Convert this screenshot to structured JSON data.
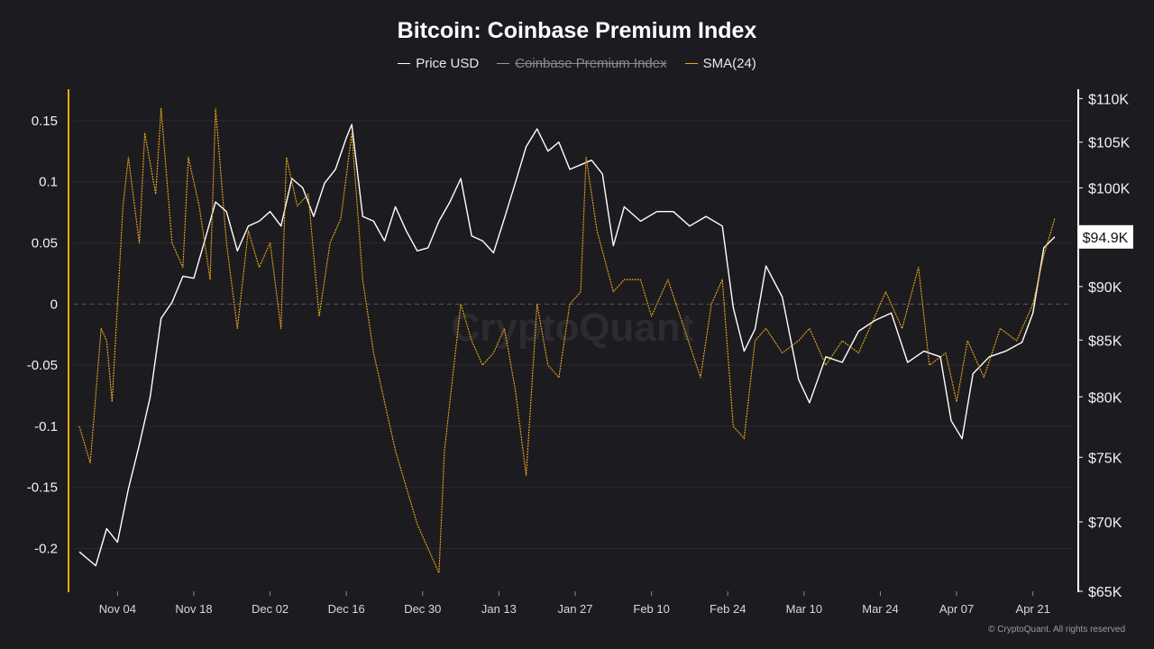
{
  "title": "Bitcoin: Coinbase Premium Index",
  "legend": [
    {
      "label": "Price USD",
      "color": "#ffffff",
      "hidden": false
    },
    {
      "label": "Coinbase Premium Index",
      "color": "#9a9aa0",
      "hidden": true
    },
    {
      "label": "SMA(24)",
      "color": "#f0a818",
      "hidden": false
    }
  ],
  "watermark": "CryptoQuant",
  "footer": "© CryptoQuant. All rights reserved",
  "chart_data": {
    "type": "line",
    "title": "Bitcoin: Coinbase Premium Index",
    "x_tick_labels": [
      "Nov 04",
      "Nov 18",
      "Dec 02",
      "Dec 16",
      "Dec 30",
      "Jan 13",
      "Jan 27",
      "Feb 10",
      "Feb 24",
      "Mar 10",
      "Mar 24",
      "Apr 07",
      "Apr 21"
    ],
    "y_left": {
      "ticks": [
        0.15,
        0.1,
        0.05,
        0,
        -0.05,
        -0.1,
        -0.15,
        -0.2
      ],
      "tick_labels": [
        "0.15",
        "0.1",
        "0.05",
        "0",
        "-0.05",
        "-0.1",
        "-0.15",
        "-0.2"
      ],
      "range": [
        -0.235,
        0.175
      ],
      "zero_line": "dashed"
    },
    "y_right": {
      "ticks": [
        65000,
        70000,
        75000,
        80000,
        85000,
        90000,
        95000,
        100000,
        105000,
        110000
      ],
      "tick_labels": [
        "$65K",
        "$70K",
        "$75K",
        "$80K",
        "$85K",
        "$90K",
        "$95K",
        "$100K",
        "$105K",
        "$110K"
      ],
      "scale": "log",
      "current_value_label": "$94.9K"
    },
    "grid": "horizontal",
    "legend_position": "top-center",
    "series": [
      {
        "name": "Price USD",
        "axis": "right",
        "color": "#ffffff",
        "x": [
          "2024-10-28",
          "2024-10-31",
          "2024-11-02",
          "2024-11-04",
          "2024-11-06",
          "2024-11-08",
          "2024-11-10",
          "2024-11-12",
          "2024-11-14",
          "2024-11-16",
          "2024-11-18",
          "2024-11-20",
          "2024-11-22",
          "2024-11-24",
          "2024-11-26",
          "2024-11-28",
          "2024-11-30",
          "2024-12-02",
          "2024-12-04",
          "2024-12-06",
          "2024-12-08",
          "2024-12-10",
          "2024-12-12",
          "2024-12-14",
          "2024-12-16",
          "2024-12-17",
          "2024-12-19",
          "2024-12-21",
          "2024-12-23",
          "2024-12-25",
          "2024-12-27",
          "2024-12-29",
          "2024-12-31",
          "2025-01-02",
          "2025-01-04",
          "2025-01-06",
          "2025-01-08",
          "2025-01-10",
          "2025-01-12",
          "2025-01-14",
          "2025-01-16",
          "2025-01-18",
          "2025-01-20",
          "2025-01-22",
          "2025-01-24",
          "2025-01-26",
          "2025-01-28",
          "2025-01-30",
          "2025-02-01",
          "2025-02-03",
          "2025-02-05",
          "2025-02-08",
          "2025-02-11",
          "2025-02-14",
          "2025-02-17",
          "2025-02-20",
          "2025-02-23",
          "2025-02-25",
          "2025-02-27",
          "2025-03-01",
          "2025-03-03",
          "2025-03-06",
          "2025-03-09",
          "2025-03-11",
          "2025-03-14",
          "2025-03-17",
          "2025-03-20",
          "2025-03-23",
          "2025-03-26",
          "2025-03-29",
          "2025-04-01",
          "2025-04-04",
          "2025-04-06",
          "2025-04-08",
          "2025-04-10",
          "2025-04-13",
          "2025-04-16",
          "2025-04-19",
          "2025-04-21",
          "2025-04-23",
          "2025-04-25"
        ],
        "y": [
          67800,
          66800,
          69500,
          68500,
          72500,
          76000,
          80000,
          87000,
          88500,
          91000,
          90800,
          94500,
          98500,
          97500,
          93500,
          96000,
          96500,
          97500,
          96000,
          101000,
          100000,
          97000,
          100500,
          102000,
          105500,
          107000,
          97000,
          96500,
          94500,
          98000,
          95500,
          93500,
          93800,
          96500,
          98500,
          101000,
          95000,
          94500,
          93300,
          96800,
          100500,
          104500,
          106500,
          104000,
          105000,
          102000,
          102500,
          103000,
          101500,
          94000,
          98000,
          96500,
          97500,
          97500,
          96000,
          97000,
          96000,
          88000,
          84000,
          86000,
          92000,
          89000,
          81500,
          79500,
          83500,
          83000,
          85800,
          86800,
          87500,
          83000,
          84000,
          83500,
          78000,
          76500,
          82000,
          83500,
          84000,
          84800,
          87500,
          93800,
          94900
        ]
      },
      {
        "name": "SMA(24)",
        "axis": "left",
        "color": "#f0a818",
        "x": [
          "2024-10-28",
          "2024-10-30",
          "2024-11-01",
          "2024-11-02",
          "2024-11-03",
          "2024-11-05",
          "2024-11-06",
          "2024-11-08",
          "2024-11-09",
          "2024-11-11",
          "2024-11-12",
          "2024-11-14",
          "2024-11-16",
          "2024-11-17",
          "2024-11-19",
          "2024-11-21",
          "2024-11-22",
          "2024-11-24",
          "2024-11-26",
          "2024-11-28",
          "2024-11-30",
          "2024-12-02",
          "2024-12-04",
          "2024-12-05",
          "2024-12-07",
          "2024-12-09",
          "2024-12-11",
          "2024-12-13",
          "2024-12-15",
          "2024-12-17",
          "2024-12-19",
          "2024-12-21",
          "2024-12-23",
          "2024-12-25",
          "2024-12-27",
          "2024-12-29",
          "2024-12-31",
          "2025-01-02",
          "2025-01-03",
          "2025-01-06",
          "2025-01-08",
          "2025-01-10",
          "2025-01-12",
          "2025-01-14",
          "2025-01-16",
          "2025-01-18",
          "2025-01-20",
          "2025-01-22",
          "2025-01-24",
          "2025-01-26",
          "2025-01-28",
          "2025-01-29",
          "2025-01-31",
          "2025-02-03",
          "2025-02-05",
          "2025-02-08",
          "2025-02-10",
          "2025-02-13",
          "2025-02-16",
          "2025-02-19",
          "2025-02-21",
          "2025-02-23",
          "2025-02-25",
          "2025-02-27",
          "2025-03-01",
          "2025-03-03",
          "2025-03-06",
          "2025-03-09",
          "2025-03-11",
          "2025-03-14",
          "2025-03-17",
          "2025-03-20",
          "2025-03-22",
          "2025-03-25",
          "2025-03-28",
          "2025-03-31",
          "2025-04-02",
          "2025-04-05",
          "2025-04-07",
          "2025-04-09",
          "2025-04-12",
          "2025-04-15",
          "2025-04-18",
          "2025-04-21",
          "2025-04-23",
          "2025-04-25"
        ],
        "y": [
          -0.1,
          -0.13,
          -0.02,
          -0.03,
          -0.08,
          0.08,
          0.12,
          0.05,
          0.14,
          0.09,
          0.16,
          0.05,
          0.03,
          0.12,
          0.08,
          0.02,
          0.16,
          0.05,
          -0.02,
          0.06,
          0.03,
          0.05,
          -0.02,
          0.12,
          0.08,
          0.09,
          -0.01,
          0.05,
          0.07,
          0.14,
          0.02,
          -0.04,
          -0.08,
          -0.12,
          -0.15,
          -0.18,
          -0.2,
          -0.22,
          -0.12,
          0.0,
          -0.03,
          -0.05,
          -0.04,
          -0.02,
          -0.07,
          -0.14,
          0.0,
          -0.05,
          -0.06,
          0.0,
          0.01,
          0.12,
          0.06,
          0.01,
          0.02,
          0.02,
          -0.01,
          0.02,
          -0.02,
          -0.06,
          0.0,
          0.02,
          -0.1,
          -0.11,
          -0.03,
          -0.02,
          -0.04,
          -0.03,
          -0.02,
          -0.05,
          -0.03,
          -0.04,
          -0.02,
          0.01,
          -0.02,
          0.03,
          -0.05,
          -0.04,
          -0.08,
          -0.03,
          -0.06,
          -0.02,
          -0.03,
          0.0,
          0.04,
          0.07
        ]
      }
    ]
  }
}
